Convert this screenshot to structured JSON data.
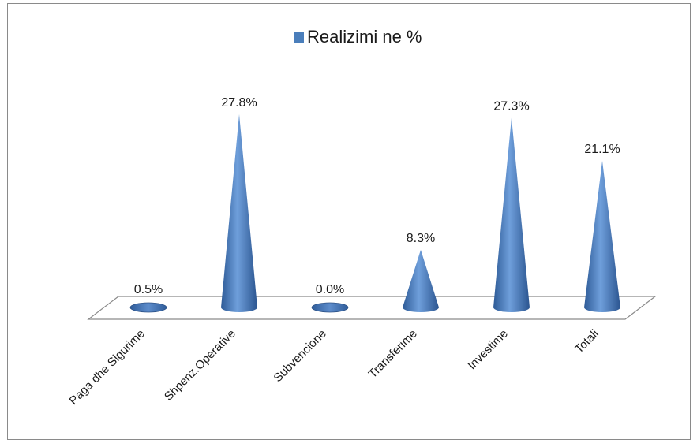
{
  "chart_data": {
    "type": "bar",
    "title": "",
    "xlabel": "",
    "ylabel": "",
    "categories": [
      "Paga dhe Sigurime",
      "Shpenz.Operative",
      "Subvencione",
      "Transferime",
      "Investime",
      "Totali"
    ],
    "series": [
      {
        "name": "Realizimi ne %",
        "values": [
          0.5,
          27.8,
          0.0,
          8.3,
          27.3,
          21.1
        ],
        "labels": [
          "0.5%",
          "27.8%",
          "0.0%",
          "8.3%",
          "27.3%",
          "21.1%"
        ]
      }
    ],
    "ylim": [
      0,
      30
    ],
    "grid": false,
    "legend": "top",
    "shape": "cone",
    "bar_color": "#4a7ebb"
  }
}
